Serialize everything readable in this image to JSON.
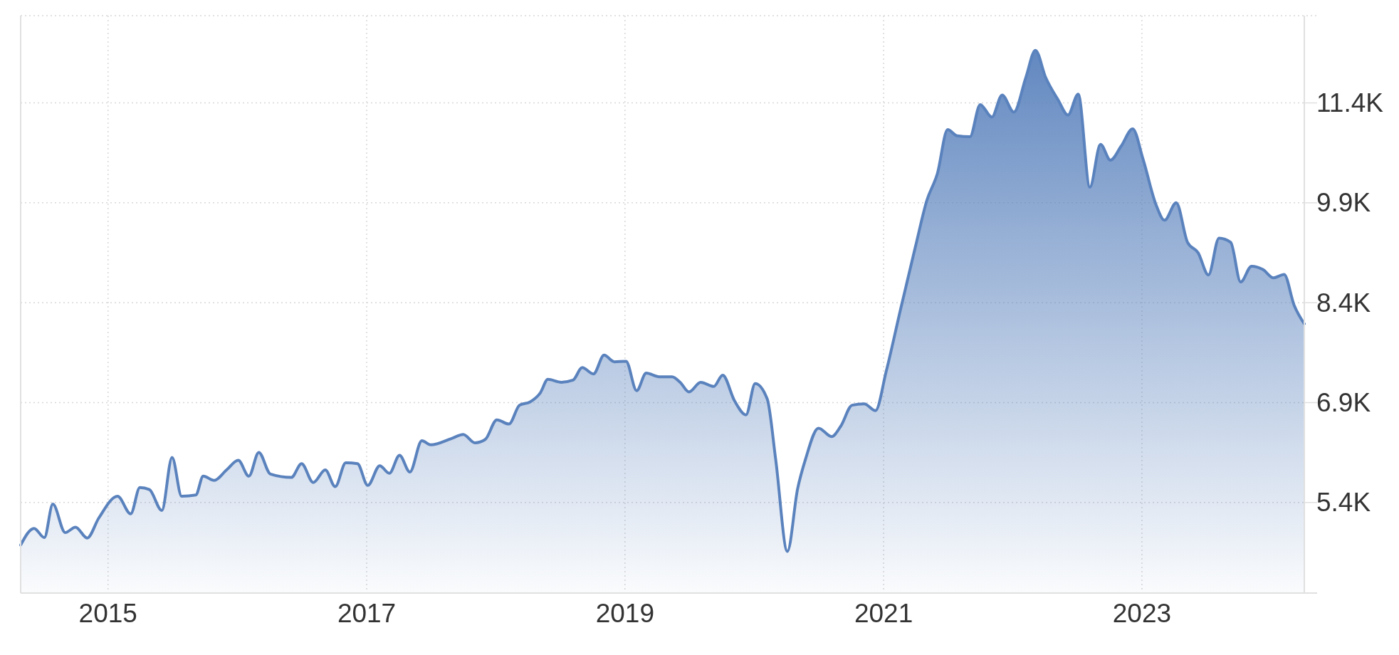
{
  "chart_data": {
    "type": "area",
    "x": [
      "2014-04-29",
      "2014-06-06",
      "2014-07-05",
      "2014-07-29",
      "2014-09-02",
      "2014-10-01",
      "2014-11-03",
      "2014-12-06",
      "2015-01-28",
      "2015-03-06",
      "2015-04-01",
      "2015-04-28",
      "2015-06-02",
      "2015-07-01",
      "2015-07-28",
      "2015-09-06",
      "2015-09-27",
      "2015-10-28",
      "2015-12-02",
      "2016-01-04",
      "2016-02-03",
      "2016-03-02",
      "2016-04-04",
      "2016-06-02",
      "2016-07-01",
      "2016-08-03",
      "2016-09-06",
      "2016-10-04",
      "2016-11-03",
      "2016-12-06",
      "2017-01-04",
      "2017-02-07",
      "2017-03-06",
      "2017-04-04",
      "2017-05-03",
      "2017-06-06",
      "2017-07-01",
      "2017-08-28",
      "2017-10-01",
      "2017-11-03",
      "2017-12-02",
      "2018-01-04",
      "2018-02-07",
      "2018-03-09",
      "2018-04-08",
      "2018-05-07",
      "2018-05-28",
      "2018-07-05",
      "2018-08-07",
      "2018-09-02",
      "2018-10-04",
      "2018-11-03",
      "2018-12-02",
      "2019-01-04",
      "2019-02-03",
      "2019-03-02",
      "2019-04-08",
      "2019-05-14",
      "2019-06-06",
      "2019-07-01",
      "2019-08-03",
      "2019-09-09",
      "2019-10-04",
      "2019-11-07",
      "2019-12-09",
      "2020-01-04",
      "2020-02-07",
      "2020-03-02",
      "2020-04-04",
      "2020-05-03",
      "2020-05-25",
      "2020-07-01",
      "2020-08-07",
      "2020-09-02",
      "2020-10-04",
      "2020-11-07",
      "2020-12-09",
      "2021-01-08",
      "2021-02-18",
      "2021-04-01",
      "2021-05-03",
      "2021-06-02",
      "2021-07-01",
      "2021-07-28",
      "2021-09-02",
      "2021-10-01",
      "2021-11-03",
      "2021-12-02",
      "2022-01-04",
      "2022-02-07",
      "2022-03-06",
      "2022-04-04",
      "2022-05-10",
      "2022-06-06",
      "2022-07-05",
      "2022-08-07",
      "2022-09-06",
      "2022-10-04",
      "2022-11-03",
      "2022-12-06",
      "2023-01-04",
      "2023-02-10",
      "2023-03-06",
      "2023-04-08",
      "2023-05-10",
      "2023-06-09",
      "2023-07-08",
      "2023-08-07",
      "2023-09-09",
      "2023-10-07",
      "2023-11-07",
      "2023-12-09",
      "2024-01-08",
      "2024-02-07",
      "2024-03-06",
      "2024-04-04"
    ],
    "series": [
      {
        "color": "#5a82bd",
        "values": [
          4760,
          5011,
          4873,
          5375,
          4948,
          5030,
          4867,
          5168,
          5494,
          5230,
          5625,
          5594,
          5280,
          6077,
          5494,
          5512,
          5795,
          5732,
          5889,
          6033,
          5795,
          6152,
          5826,
          5776,
          5983,
          5701,
          5889,
          5638,
          5996,
          5983,
          5657,
          5952,
          5839,
          6109,
          5858,
          6328,
          6265,
          6359,
          6422,
          6296,
          6346,
          6641,
          6578,
          6861,
          6911,
          7049,
          7249,
          7205,
          7237,
          7425,
          7331,
          7613,
          7513,
          7519,
          7080,
          7343,
          7287,
          7287,
          7205,
          7061,
          7205,
          7143,
          7312,
          6923,
          6716,
          7187,
          6955,
          6045,
          4666,
          5607,
          6045,
          6516,
          6390,
          6547,
          6861,
          6880,
          6779,
          7362,
          8303,
          9243,
          9933,
          10340,
          10999,
          10905,
          10892,
          11375,
          11187,
          11519,
          11262,
          11782,
          12190,
          11782,
          11438,
          11218,
          11532,
          10134,
          10779,
          10541,
          10748,
          11011,
          10560,
          9870,
          9638,
          9902,
          9306,
          9149,
          8817,
          9369,
          9306,
          8711,
          8948,
          8898,
          8773,
          8823,
          8365,
          8083
        ]
      }
    ],
    "xlim": [
      "2014-04-29",
      "2024-04-04"
    ],
    "xticks": [
      "2015",
      "2017",
      "2019",
      "2021",
      "2023"
    ],
    "ylim": [
      4040,
      12710
    ],
    "yticks": [
      {
        "value": 5400,
        "label": "5.4K"
      },
      {
        "value": 6900,
        "label": "6.9K"
      },
      {
        "value": 8400,
        "label": "8.4K"
      },
      {
        "value": 9900,
        "label": "9.9K"
      },
      {
        "value": 11400,
        "label": "11.4K"
      }
    ],
    "grid": true
  }
}
